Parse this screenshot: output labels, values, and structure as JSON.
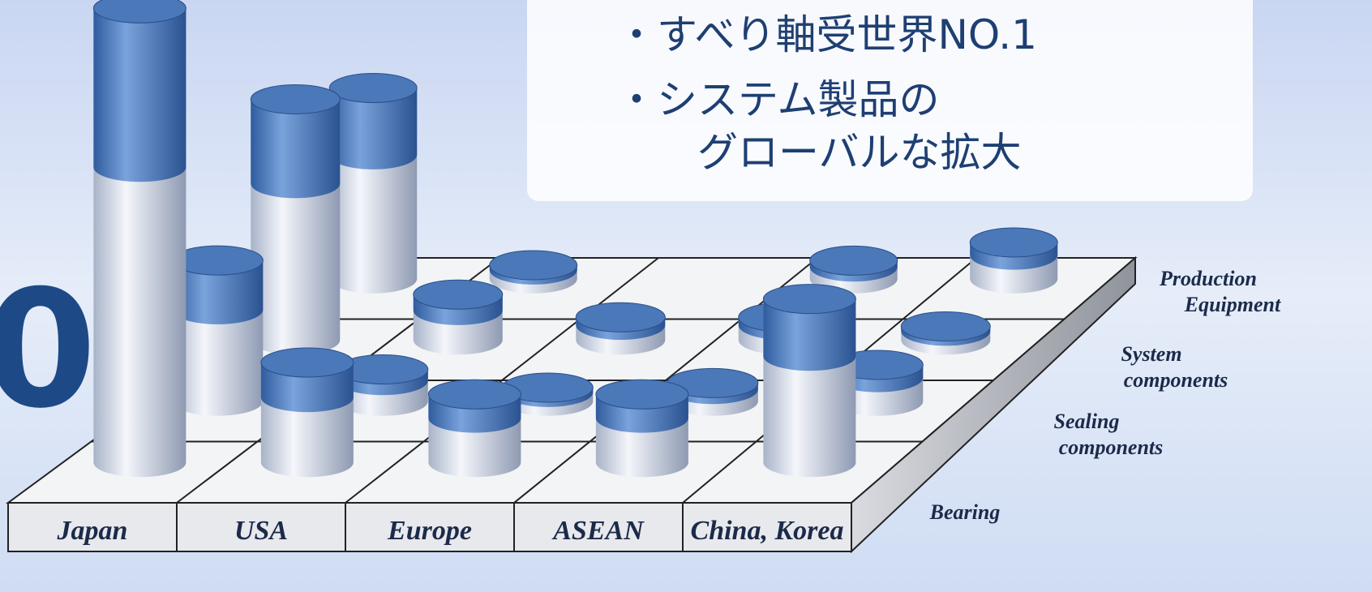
{
  "callout": [
    "・すべり軸受世界NO.1",
    "・システム製品の",
    "グローバルな拡大"
  ],
  "logo_fragment": "0",
  "chart_data": {
    "type": "cylinder3d",
    "categories": [
      "Japan",
      "USA",
      "Europe",
      "ASEAN",
      "China, Korea"
    ],
    "series": [
      {
        "name": "Bearing",
        "color": "#4a78b8",
        "values": [
          100,
          22,
          15,
          15,
          36
        ]
      },
      {
        "name": [
          "Sealing",
          "components"
        ],
        "color": "#4a78b8",
        "values": [
          31,
          7,
          3,
          4,
          8
        ]
      },
      {
        "name": [
          "System",
          "components"
        ],
        "color": "#4a78b8",
        "values": [
          53,
          10,
          5,
          5,
          3
        ]
      },
      {
        "name": [
          "Production",
          "Equipment"
        ],
        "color": "#4a78b8",
        "values": [
          42,
          3,
          null,
          4,
          8
        ]
      }
    ],
    "ylim": [
      0,
      100
    ]
  }
}
